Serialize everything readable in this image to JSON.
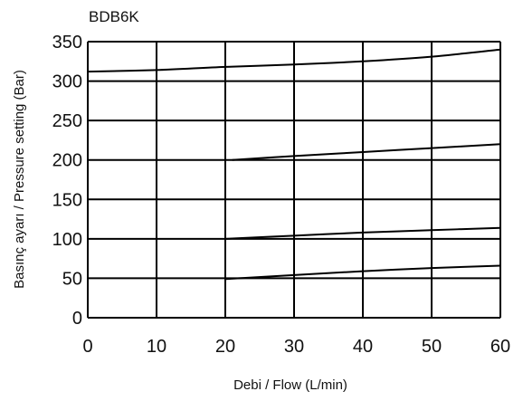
{
  "chart_data": {
    "type": "line",
    "title": "BDB6K",
    "xlabel": "Debi / Flow (L/min)",
    "ylabel": "Basınç ayarı /  Pressure setting (Bar)",
    "xlim": [
      0,
      60
    ],
    "ylim": [
      0,
      350
    ],
    "x_ticks": [
      "0",
      "10",
      "20",
      "30",
      "40",
      "50",
      "60"
    ],
    "y_ticks": [
      "0",
      "50",
      "100",
      "150",
      "200",
      "250",
      "300",
      "350"
    ],
    "grid": true,
    "series": [
      {
        "x": [
          0,
          10,
          20,
          30,
          40,
          50,
          60
        ],
        "values": [
          312,
          314,
          318,
          321,
          325,
          331,
          340
        ]
      },
      {
        "x": [
          21,
          30,
          40,
          50,
          60
        ],
        "values": [
          200,
          205,
          210,
          215,
          220
        ]
      },
      {
        "x": [
          20,
          30,
          40,
          50,
          60
        ],
        "values": [
          100,
          104,
          108,
          111,
          114
        ]
      },
      {
        "x": [
          20,
          30,
          40,
          50,
          60
        ],
        "values": [
          49,
          54,
          59,
          63,
          66
        ]
      }
    ]
  }
}
